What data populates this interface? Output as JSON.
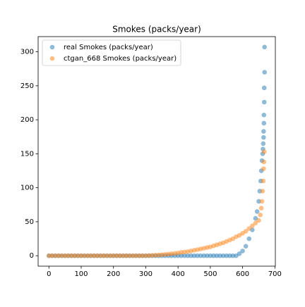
{
  "chart_data": {
    "type": "scatter",
    "title": "Smokes (packs/year)",
    "xlim": [
      -33.4,
      701.4
    ],
    "xticks": [
      0,
      100,
      200,
      300,
      400,
      500,
      600,
      700
    ],
    "ylim": [
      -15.35,
      322.35
    ],
    "yticks": [
      0,
      50,
      100,
      150,
      200,
      250,
      300
    ],
    "legend": "upper left",
    "alpha": 0.5,
    "series": [
      {
        "name": "real Smokes (packs/year)",
        "color": "#1f77b4",
        "x": [
          0,
          10,
          20,
          30,
          40,
          50,
          60,
          70,
          80,
          90,
          100,
          110,
          120,
          130,
          140,
          150,
          160,
          170,
          180,
          190,
          200,
          210,
          220,
          230,
          240,
          250,
          260,
          270,
          280,
          290,
          300,
          310,
          320,
          330,
          340,
          350,
          360,
          370,
          380,
          390,
          400,
          410,
          420,
          430,
          440,
          450,
          460,
          470,
          480,
          490,
          500,
          510,
          520,
          530,
          540,
          550,
          560,
          570,
          580,
          590,
          600,
          610,
          620,
          630,
          640,
          645,
          650,
          653,
          656,
          658,
          660,
          662,
          663,
          664,
          665,
          665,
          666,
          666,
          667,
          667,
          668,
          668
        ],
        "values": [
          0,
          0,
          0,
          0,
          0,
          0,
          0,
          0,
          0,
          0,
          0,
          0,
          0,
          0,
          0,
          0,
          0,
          0,
          0,
          0,
          0,
          0,
          0,
          0,
          0,
          0,
          0,
          0,
          0,
          0,
          0,
          0,
          0,
          0,
          0,
          0,
          0,
          0,
          0,
          0,
          0,
          0,
          0,
          0,
          0,
          0,
          0,
          0,
          0,
          0,
          0,
          0,
          0,
          0,
          0,
          0,
          0,
          0,
          0,
          3,
          7,
          14,
          25,
          38,
          55,
          65,
          80,
          95,
          110,
          125,
          140,
          150,
          157,
          165,
          174,
          183,
          195,
          207,
          226,
          247,
          270,
          307
        ]
      },
      {
        "name": "ctgan_668 Smokes (packs/year)",
        "color": "#ff7f0e",
        "x": [
          0,
          10,
          20,
          30,
          40,
          50,
          60,
          70,
          80,
          90,
          100,
          110,
          120,
          130,
          140,
          150,
          160,
          170,
          180,
          190,
          200,
          210,
          220,
          230,
          240,
          250,
          260,
          270,
          280,
          290,
          300,
          310,
          320,
          330,
          340,
          350,
          360,
          370,
          380,
          390,
          400,
          410,
          420,
          430,
          440,
          450,
          460,
          470,
          480,
          490,
          500,
          510,
          520,
          530,
          540,
          550,
          560,
          570,
          580,
          590,
          600,
          610,
          620,
          630,
          640,
          650,
          655,
          658,
          660,
          662,
          664,
          665,
          666,
          667
        ],
        "values": [
          0,
          0,
          0,
          0,
          0,
          0,
          0,
          0,
          0,
          0,
          0,
          0,
          0,
          0,
          0,
          0,
          0,
          0,
          0,
          0,
          0,
          0,
          0,
          0,
          0,
          0,
          0,
          0,
          0,
          0,
          0,
          0.3,
          0.5,
          0.8,
          1,
          1.5,
          2,
          2.5,
          3,
          3.5,
          4,
          5,
          5.5,
          6,
          7,
          8,
          9,
          10,
          11,
          12,
          13,
          14.5,
          16,
          17.5,
          19,
          21,
          23,
          25,
          28,
          30,
          33,
          36,
          40,
          44,
          48,
          52,
          60,
          70,
          80,
          95,
          110,
          128,
          138,
          153
        ]
      }
    ]
  }
}
